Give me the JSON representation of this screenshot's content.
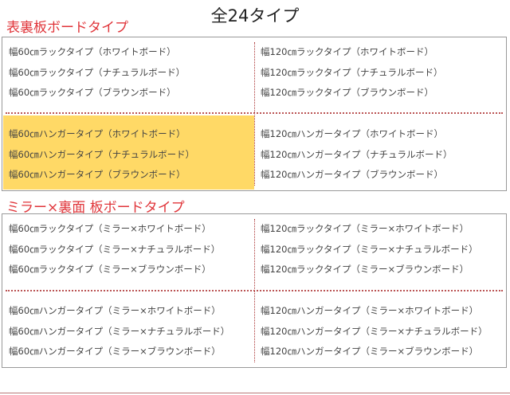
{
  "title": "全24タイプ",
  "sections": [
    {
      "heading": "表裏板ボードタイプ",
      "highlight_color": "#ffd966",
      "left_top": [
        "幅60㎝ラックタイプ（ホワイトボード）",
        "幅60㎝ラックタイプ（ナチュラルボード）",
        "幅60㎝ラックタイプ（ブラウンボード）"
      ],
      "right_top": [
        "幅120㎝ラックタイプ（ホワイトボード）",
        "幅120㎝ラックタイプ（ナチュラルボード）",
        "幅120㎝ラックタイプ（ブラウンボード）"
      ],
      "left_bottom": [
        "幅60㎝ハンガータイプ（ホワイトボード）",
        "幅60㎝ハンガータイプ（ナチュラルボード）",
        "幅60㎝ハンガータイプ（ブラウンボード）"
      ],
      "right_bottom": [
        "幅120㎝ハンガータイプ（ホワイトボード）",
        "幅120㎝ハンガータイプ（ナチュラルボード）",
        "幅120㎝ハンガータイプ（ブラウンボード）"
      ]
    },
    {
      "heading": "ミラー×裏面 板ボードタイプ",
      "left_top": [
        "幅60㎝ラックタイプ（ミラー×ホワイトボード）",
        "幅60㎝ラックタイプ（ミラー×ナチュラルボード）",
        "幅60㎝ラックタイプ（ミラー×ブラウンボード）"
      ],
      "right_top": [
        "幅120㎝ラックタイプ（ミラー×ホワイトボード）",
        "幅120㎝ラックタイプ（ミラー×ナチュラルボード）",
        "幅120㎝ラックタイプ（ミラー×ブラウンボード）"
      ],
      "left_bottom": [
        "幅60㎝ハンガータイプ（ミラー×ホワイトボード）",
        "幅60㎝ハンガータイプ（ミラー×ナチュラルボード）",
        "幅60㎝ハンガータイプ（ミラー×ブラウンボード）"
      ],
      "right_bottom": [
        "幅120㎝ハンガータイプ（ミラー×ホワイトボード）",
        "幅120㎝ハンガータイプ（ミラー×ナチュラルボード）",
        "幅120㎝ハンガータイプ（ミラー×ブラウンボード）"
      ]
    }
  ]
}
